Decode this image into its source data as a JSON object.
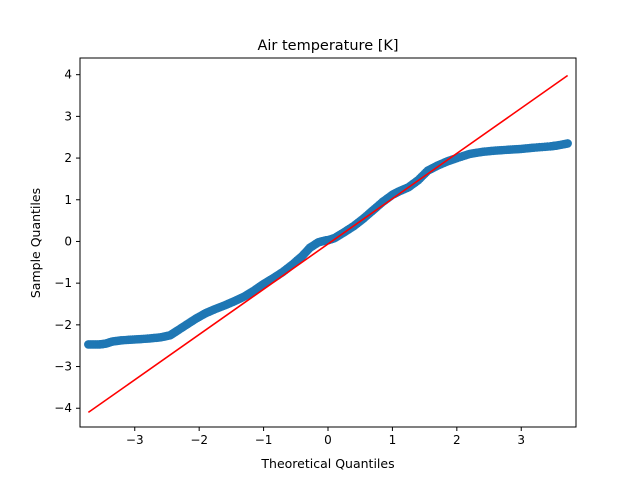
{
  "chart_data": {
    "type": "scatter",
    "title": "Air temperature [K]",
    "xlabel": "Theoretical Quantiles",
    "ylabel": "Sample Quantiles",
    "xlim": [
      -3.85,
      3.85
    ],
    "ylim": [
      -4.45,
      4.4
    ],
    "xticks": [
      -3,
      -2,
      -1,
      0,
      1,
      2,
      3
    ],
    "yticks": [
      -4,
      -3,
      -2,
      -1,
      0,
      1,
      2,
      3,
      4
    ],
    "xtick_labels": [
      "−3",
      "−2",
      "−1",
      "0",
      "1",
      "2",
      "3"
    ],
    "ytick_labels": [
      "−4",
      "−3",
      "−2",
      "−1",
      "0",
      "1",
      "2",
      "3",
      "4"
    ],
    "grid": false,
    "colors": {
      "points": "#1f77b4",
      "reference_line": "#ff0000"
    },
    "series": [
      {
        "kind": "points",
        "x": [
          -3.72,
          -3.55,
          -3.45,
          -3.35,
          -3.2,
          -3.0,
          -2.8,
          -2.6,
          -2.45,
          -2.35,
          -2.2,
          -2.05,
          -1.9,
          -1.75,
          -1.6,
          -1.45,
          -1.3,
          -1.15,
          -1.0,
          -0.85,
          -0.7,
          -0.55,
          -0.4,
          -0.28,
          -0.15,
          -0.05,
          0.0,
          0.1,
          0.25,
          0.4,
          0.55,
          0.7,
          0.85,
          1.0,
          1.1,
          1.25,
          1.4,
          1.55,
          1.7,
          1.85,
          2.0,
          2.2,
          2.4,
          2.6,
          2.8,
          3.0,
          3.2,
          3.45,
          3.55,
          3.72
        ],
        "y": [
          -2.47,
          -2.47,
          -2.45,
          -2.4,
          -2.37,
          -2.35,
          -2.33,
          -2.3,
          -2.25,
          -2.15,
          -2.0,
          -1.85,
          -1.72,
          -1.62,
          -1.53,
          -1.43,
          -1.32,
          -1.18,
          -1.02,
          -0.88,
          -0.73,
          -0.55,
          -0.35,
          -0.15,
          -0.02,
          0.02,
          0.03,
          0.08,
          0.22,
          0.37,
          0.55,
          0.75,
          0.95,
          1.12,
          1.2,
          1.3,
          1.47,
          1.7,
          1.82,
          1.92,
          2.0,
          2.1,
          2.15,
          2.18,
          2.2,
          2.22,
          2.25,
          2.28,
          2.3,
          2.35
        ]
      },
      {
        "kind": "line",
        "x": [
          -3.72,
          3.72
        ],
        "y": [
          -4.1,
          3.98
        ]
      }
    ]
  }
}
